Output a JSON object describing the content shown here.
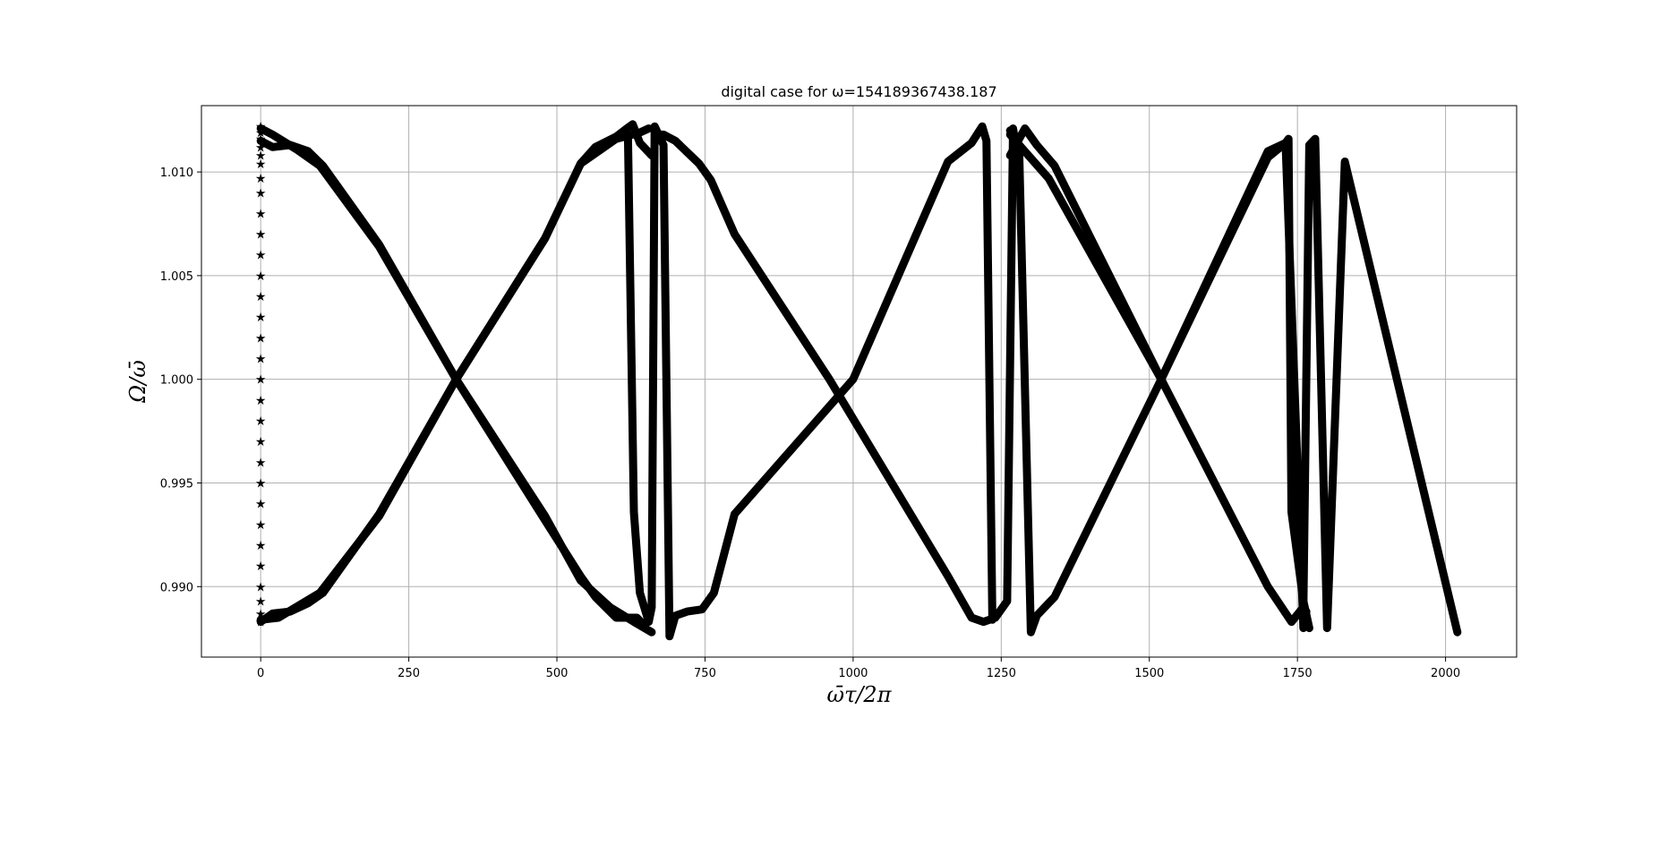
{
  "chart_data": {
    "type": "line",
    "title": "digital case for ω=154189367438.187",
    "xlabel": "ω̄τ/2π",
    "ylabel": "Ω/ω̄",
    "xlim": [
      -100,
      2120
    ],
    "ylim": [
      0.9866,
      1.0132
    ],
    "grid": true,
    "line_color": "#000000",
    "xticks": [
      0,
      250,
      500,
      750,
      1000,
      1250,
      1500,
      1750,
      2000
    ],
    "xtick_labels": [
      "0",
      "250",
      "500",
      "750",
      "1000",
      "1250",
      "1500",
      "1750",
      "2000"
    ],
    "yticks": [
      0.99,
      0.995,
      1.0,
      1.005,
      1.01
    ],
    "ytick_labels": [
      "0.990",
      "0.995",
      "1.000",
      "1.005",
      "1.010"
    ],
    "series": [
      {
        "x": [
          0,
          20,
          50,
          80,
          105,
          200,
          330,
          480,
          540,
          565,
          600,
          618,
          627,
          635,
          645
        ],
        "y": [
          1.0115,
          1.0112,
          1.0113,
          1.011,
          1.0103,
          1.0065,
          1.0,
          0.9932,
          0.9905,
          0.9895,
          0.9885,
          0.9885,
          0.9885,
          0.9885,
          0.9882
        ]
      },
      {
        "x": [
          0,
          20,
          50,
          80,
          105,
          200,
          330,
          480,
          540,
          565,
          600,
          618,
          628,
          640,
          660
        ],
        "y": [
          0.9883,
          0.9887,
          0.9888,
          0.9892,
          0.9897,
          0.9935,
          1.0,
          1.0068,
          1.0104,
          1.0112,
          1.0117,
          1.0121,
          1.0123,
          1.0114,
          1.0108
        ]
      },
      {
        "x": [
          0,
          30,
          100,
          200,
          330,
          480,
          540,
          600,
          640,
          655
        ],
        "y": [
          0.9884,
          0.9885,
          0.9897,
          0.9934,
          1.0,
          1.0068,
          1.0104,
          1.0116,
          1.0119,
          1.0121
        ]
      },
      {
        "x": [
          0,
          20,
          60,
          100,
          200,
          330,
          480,
          540,
          590,
          630,
          660
        ],
        "y": [
          1.0121,
          1.0118,
          1.0111,
          1.0103,
          1.0064,
          1.0,
          0.9934,
          0.9903,
          0.989,
          0.9883,
          0.9878
        ]
      },
      {
        "x": [
          620,
          630,
          640,
          655,
          660,
          665,
          680,
          690,
          700,
          720,
          745,
          765,
          800,
          1000,
          1160,
          1200,
          1218,
          1225,
          1235
        ],
        "y": [
          1.0117,
          0.9936,
          0.9897,
          0.9883,
          0.989,
          1.0122,
          1.0113,
          0.9876,
          0.9886,
          0.9888,
          0.9889,
          0.9897,
          0.9935,
          1.0,
          1.0105,
          1.0114,
          1.0122,
          1.0115,
          0.9884
        ]
      },
      {
        "x": [
          665,
          680,
          700,
          740,
          760,
          800,
          960,
          1160,
          1200,
          1220,
          1240,
          1260,
          1270,
          1275
        ],
        "y": [
          1.0118,
          1.0118,
          1.0115,
          1.0104,
          1.0096,
          1.007,
          1.0,
          0.9905,
          0.9885,
          0.9883,
          0.9885,
          0.9893,
          1.0121,
          1.0112
        ]
      },
      {
        "x": [
          1265,
          1290,
          1310,
          1340,
          1520,
          1700,
          1730,
          1735,
          1740,
          1760,
          1770
        ],
        "y": [
          1.0108,
          1.0121,
          1.0113,
          1.0103,
          1.0,
          1.0107,
          1.0114,
          1.0116,
          0.9936,
          0.9893,
          0.988
        ]
      },
      {
        "x": [
          1265,
          1280,
          1300,
          1310,
          1340,
          1520,
          1700,
          1730,
          1760,
          1765
        ],
        "y": [
          1.012,
          1.0113,
          0.9878,
          0.9886,
          0.9895,
          1.0,
          1.011,
          1.0114,
          0.988,
          0.9888
        ]
      },
      {
        "x": [
          1265,
          1330,
          1520,
          1700,
          1740,
          1760,
          1770,
          1780,
          1800,
          1830,
          2020
        ],
        "y": [
          1.0118,
          1.0097,
          1.0,
          0.99,
          0.9883,
          0.989,
          1.0113,
          1.0116,
          0.988,
          1.0105,
          0.9878
        ]
      }
    ],
    "markers": {
      "symbol": "★",
      "x": 0,
      "y": [
        0.9883,
        0.9887,
        0.9893,
        0.99,
        0.991,
        0.992,
        0.993,
        0.994,
        0.995,
        0.996,
        0.997,
        0.998,
        0.999,
        1.0,
        1.001,
        1.002,
        1.003,
        1.004,
        1.005,
        1.006,
        1.007,
        1.008,
        1.009,
        1.0097,
        1.0104,
        1.0108,
        1.0112,
        1.0116,
        1.0119,
        1.0122
      ]
    }
  }
}
